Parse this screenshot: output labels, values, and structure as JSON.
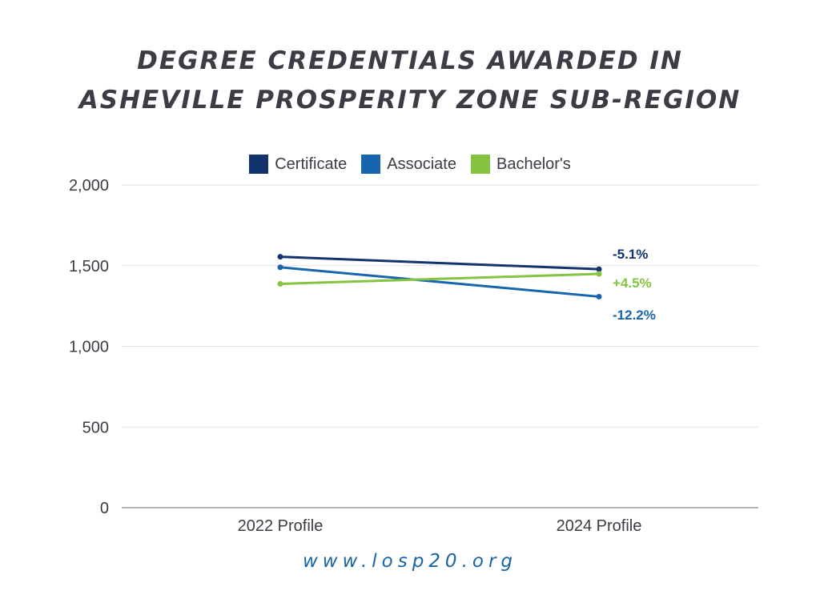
{
  "chart_data": {
    "type": "line",
    "title_lines": [
      "DEGREE CREDENTIALS AWARDED IN",
      "ASHEVILLE PROSPERITY ZONE SUB-REGION"
    ],
    "categories": [
      "2022 Profile",
      "2024 Profile"
    ],
    "ylim": [
      0,
      2000
    ],
    "yticks": [
      0,
      500,
      1000,
      1500,
      2000
    ],
    "ytick_labels": [
      "0",
      "500",
      "1,000",
      "1,500",
      "2,000"
    ],
    "grid": true,
    "legend_position": "top-center",
    "series": [
      {
        "name": "Certificate",
        "values": [
          1555,
          1478
        ],
        "color": "#13336f",
        "end_label": "-5.1%"
      },
      {
        "name": "Associate",
        "values": [
          1490,
          1308
        ],
        "color": "#1665ad",
        "end_label": "-12.2%"
      },
      {
        "name": "Bachelor's",
        "values": [
          1387,
          1449
        ],
        "color": "#84c441",
        "end_label": "+4.5%"
      }
    ]
  },
  "footer": {
    "url": "www.losp20.org"
  }
}
